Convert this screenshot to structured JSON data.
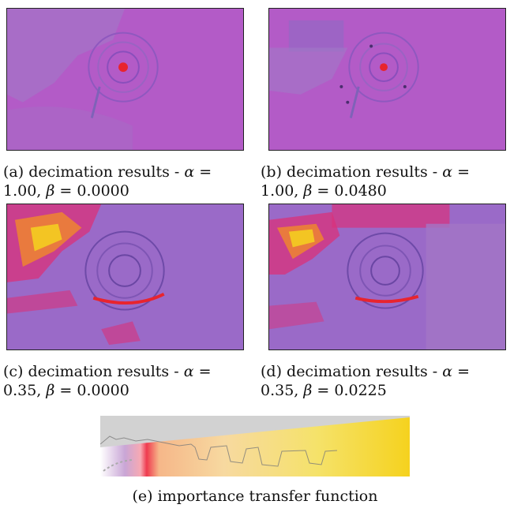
{
  "panels": [
    {
      "id": "a",
      "caption_line1": "(a) decimation results - ",
      "alpha_sym": "α",
      "eq": " =",
      "caption_line2_pre": "1.00, ",
      "beta_sym": "β",
      "caption_line2_post": " = 0.0000"
    },
    {
      "id": "b",
      "caption_line1": "(b) decimation results - ",
      "alpha_sym": "α",
      "eq": " =",
      "caption_line2_pre": "1.00, ",
      "beta_sym": "β",
      "caption_line2_post": " = 0.0480"
    },
    {
      "id": "c",
      "caption_line1": "(c) decimation results - ",
      "alpha_sym": "α",
      "eq": " =",
      "caption_line2_pre": "0.35, ",
      "beta_sym": "β",
      "caption_line2_post": " = 0.0000"
    },
    {
      "id": "d",
      "caption_line1": "(d) decimation results - ",
      "alpha_sym": "α",
      "eq": " =",
      "caption_line2_pre": "0.35, ",
      "beta_sym": "β",
      "caption_line2_post": " = 0.0225"
    }
  ],
  "transfer_function": {
    "caption": "(e) importance transfer function"
  },
  "colors": {
    "base_purple": "#b35bc7",
    "hot_red": "#e8242e",
    "hot_yellow": "#f5d21e",
    "tf_gray": "#d2d2d2"
  }
}
